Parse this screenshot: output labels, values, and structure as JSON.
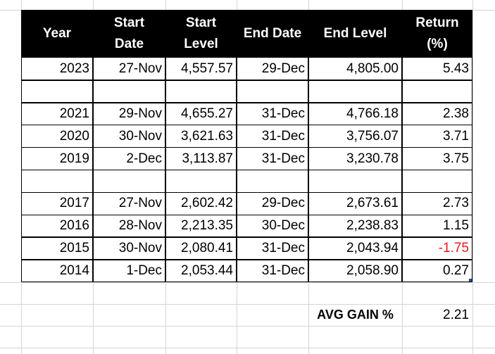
{
  "headers": {
    "year": [
      "Year"
    ],
    "start_date": [
      "Start",
      "Date"
    ],
    "start_level": [
      "Start",
      "Level"
    ],
    "end_date": [
      "End Date"
    ],
    "end_level": [
      "End Level"
    ],
    "return_pct": [
      "Return",
      "(%)"
    ]
  },
  "rows": [
    {
      "year": "2023",
      "start_date": "27-Nov",
      "start_level": "4,557.57",
      "end_date": "29-Dec",
      "end_level": "4,805.00",
      "return": "5.43"
    },
    {
      "year": "",
      "start_date": "",
      "start_level": "",
      "end_date": "",
      "end_level": "",
      "return": ""
    },
    {
      "year": "2021",
      "start_date": "29-Nov",
      "start_level": "4,655.27",
      "end_date": "31-Dec",
      "end_level": "4,766.18",
      "return": "2.38"
    },
    {
      "year": "2020",
      "start_date": "30-Nov",
      "start_level": "3,621.63",
      "end_date": "31-Dec",
      "end_level": "3,756.07",
      "return": "3.71"
    },
    {
      "year": "2019",
      "start_date": "2-Dec",
      "start_level": "3,113.87",
      "end_date": "31-Dec",
      "end_level": "3,230.78",
      "return": "3.75"
    },
    {
      "year": "",
      "start_date": "",
      "start_level": "",
      "end_date": "",
      "end_level": "",
      "return": ""
    },
    {
      "year": "2017",
      "start_date": "27-Nov",
      "start_level": "2,602.42",
      "end_date": "29-Dec",
      "end_level": "2,673.61",
      "return": "2.73"
    },
    {
      "year": "2016",
      "start_date": "28-Nov",
      "start_level": "2,213.35",
      "end_date": "30-Dec",
      "end_level": "2,238.83",
      "return": "1.15"
    },
    {
      "year": "2015",
      "start_date": "30-Nov",
      "start_level": "2,080.41",
      "end_date": "31-Dec",
      "end_level": "2,043.94",
      "return": "-1.75"
    },
    {
      "year": "2014",
      "start_date": "1-Dec",
      "start_level": "2,053.44",
      "end_date": "31-Dec",
      "end_level": "2,058.90",
      "return": "0.27"
    }
  ],
  "summary": {
    "label": "AVG GAIN %",
    "value": "2.21"
  },
  "colors": {
    "header_bg": "#000000",
    "header_text": "#ffffff",
    "negative": "#e51b1b",
    "gridline": "#d4d4d4"
  }
}
